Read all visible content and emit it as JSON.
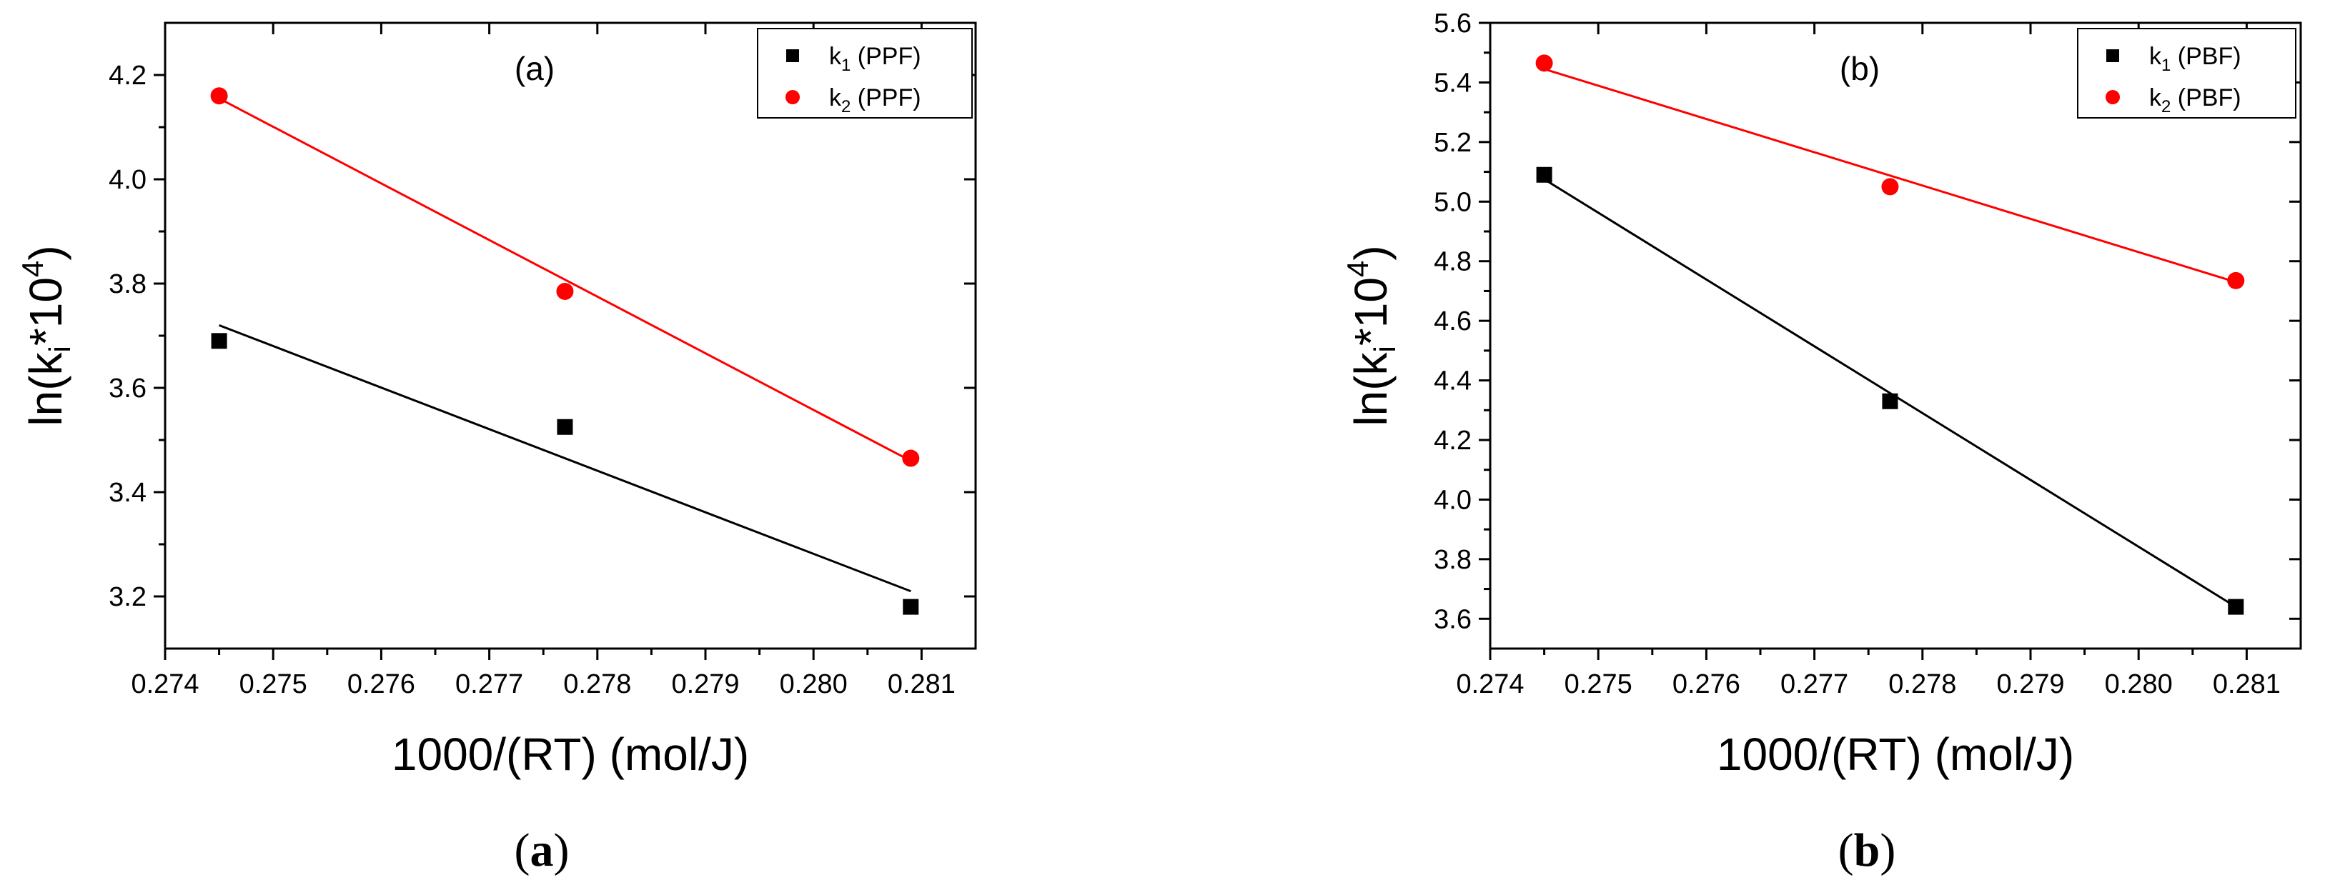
{
  "chart_data": [
    {
      "type": "scatter",
      "panel_label": "(a)",
      "caption": {
        "open": "(",
        "letter": "a",
        "close": ")"
      },
      "xlabel": "1000/(RT) (mol/J)",
      "ylabel": {
        "main": "ln(k",
        "sub": "i",
        "mid": "*10",
        "sup": "4",
        "close": ")"
      },
      "xlim": [
        0.274,
        0.2815
      ],
      "ylim": [
        3.1,
        4.3
      ],
      "xticks": [
        0.274,
        0.275,
        0.276,
        0.277,
        0.278,
        0.279,
        0.28,
        0.281
      ],
      "xtick_labels": [
        "0.274",
        "0.275",
        "0.276",
        "0.277",
        "0.278",
        "0.279",
        "0.280",
        "0.281"
      ],
      "yticks": [
        3.2,
        3.4,
        3.6,
        3.8,
        4.0,
        4.2
      ],
      "ytick_labels": [
        "3.2",
        "3.4",
        "3.6",
        "3.8",
        "4.0",
        "4.2"
      ],
      "legend_position": "top-right",
      "series": [
        {
          "name": "k1 (PPF)",
          "legend": {
            "k": "k",
            "sub": "1",
            "rest": " (PPF)"
          },
          "marker": "square",
          "color": "#000000",
          "x": [
            0.2745,
            0.2777,
            0.2809
          ],
          "y": [
            3.69,
            3.525,
            3.18
          ],
          "fit": {
            "x": [
              0.2745,
              0.2809
            ],
            "y": [
              3.72,
              3.21
            ]
          }
        },
        {
          "name": "k2 (PPF)",
          "legend": {
            "k": "k",
            "sub": "2",
            "rest": " (PPF)"
          },
          "marker": "circle",
          "color": "#ff0000",
          "x": [
            0.2745,
            0.2777,
            0.2809
          ],
          "y": [
            4.16,
            3.785,
            3.465
          ],
          "fit": {
            "x": [
              0.2745,
              0.2809
            ],
            "y": [
              4.155,
              3.46
            ]
          }
        }
      ]
    },
    {
      "type": "scatter",
      "panel_label": "(b)",
      "caption": {
        "open": "(",
        "letter": "b",
        "close": ")"
      },
      "xlabel": "1000/(RT) (mol/J)",
      "ylabel": {
        "main": "ln(k",
        "sub": "i",
        "mid": "*10",
        "sup": "4",
        "close": ")"
      },
      "xlim": [
        0.274,
        0.2815
      ],
      "ylim": [
        3.5,
        5.6
      ],
      "xticks": [
        0.274,
        0.275,
        0.276,
        0.277,
        0.278,
        0.279,
        0.28,
        0.281
      ],
      "xtick_labels": [
        "0.274",
        "0.275",
        "0.276",
        "0.277",
        "0.278",
        "0.279",
        "0.280",
        "0.281"
      ],
      "yticks": [
        3.6,
        3.8,
        4.0,
        4.2,
        4.4,
        4.6,
        4.8,
        5.0,
        5.2,
        5.4,
        5.6
      ],
      "ytick_labels": [
        "3.6",
        "3.8",
        "4.0",
        "4.2",
        "4.4",
        "4.6",
        "4.8",
        "5.0",
        "5.2",
        "5.4",
        "5.6"
      ],
      "legend_position": "top-right",
      "series": [
        {
          "name": "k1 (PBF)",
          "legend": {
            "k": "k",
            "sub": "1",
            "rest": " (PBF)"
          },
          "marker": "square",
          "color": "#000000",
          "x": [
            0.2745,
            0.2777,
            0.2809
          ],
          "y": [
            5.09,
            4.33,
            3.64
          ],
          "fit": {
            "x": [
              0.2745,
              0.2809
            ],
            "y": [
              5.075,
              3.64
            ]
          }
        },
        {
          "name": "k2 (PBF)",
          "legend": {
            "k": "k",
            "sub": "2",
            "rest": " (PBF)"
          },
          "marker": "circle",
          "color": "#ff0000",
          "x": [
            0.2745,
            0.2777,
            0.2809
          ],
          "y": [
            5.465,
            5.05,
            4.735
          ],
          "fit": {
            "x": [
              0.2745,
              0.2809
            ],
            "y": [
              5.445,
              4.73
            ]
          }
        }
      ]
    }
  ]
}
